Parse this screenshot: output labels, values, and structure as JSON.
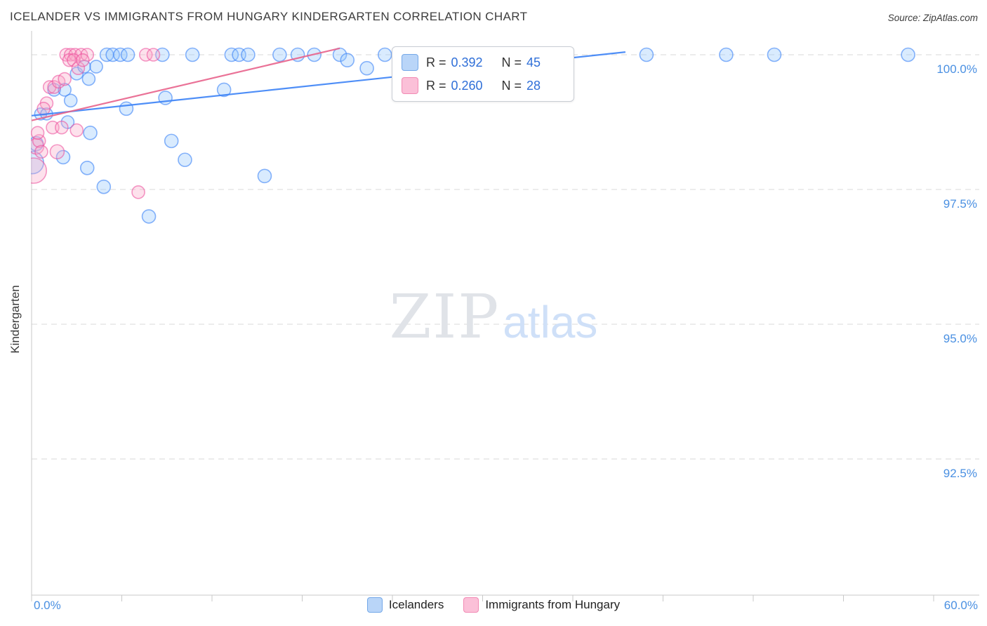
{
  "page": {
    "title": "ICELANDER VS IMMIGRANTS FROM HUNGARY KINDERGARTEN CORRELATION CHART",
    "source": "Source: ZipAtlas.com",
    "watermark": {
      "part1": "ZIP",
      "part2": "atlas"
    }
  },
  "legend_box": {
    "rows": [
      {
        "series": "Icelanders",
        "r_label": "R =",
        "r_value": "0.392",
        "n_label": "N =",
        "n_value": "45"
      },
      {
        "series": "Immigrants from Hungary",
        "r_label": "R =",
        "r_value": "0.260",
        "n_label": "N =",
        "n_value": "28"
      }
    ]
  },
  "bottom_legend": [
    {
      "label": "Icelanders"
    },
    {
      "label": "Immigrants from Hungary"
    }
  ],
  "chart_data": {
    "type": "scatter",
    "title": "ICELANDER VS IMMIGRANTS FROM HUNGARY KINDERGARTEN CORRELATION CHART",
    "xlabel": "",
    "ylabel": "Kindergarten",
    "xlim": [
      0,
      60
    ],
    "ylim": [
      89.9,
      100.4
    ],
    "grid": "dashed-horizontal",
    "legend_position": "top-center and bottom-center",
    "x_tick_labels": {
      "min": "0.0%",
      "max": "60.0%"
    },
    "y_ticks": [
      {
        "value": 100.0,
        "label": "100.0%"
      },
      {
        "value": 97.5,
        "label": "97.5%"
      },
      {
        "value": 95.0,
        "label": "95.0%"
      },
      {
        "value": 92.5,
        "label": "92.5%"
      }
    ],
    "axis_label_color": "#4a90e2",
    "series": [
      {
        "name": "Icelanders",
        "dataname": "icelanders",
        "R": 0.392,
        "N": 45,
        "fill": "#93c5fd",
        "fill_opacity": 0.35,
        "stroke": "#3b82f6",
        "stroke_opacity": 0.6,
        "points": [
          [
            5.0,
            100,
            9.5
          ],
          [
            5.4,
            100,
            9.5
          ],
          [
            5.9,
            100,
            9.5
          ],
          [
            6.4,
            100,
            9.5
          ],
          [
            8.7,
            100,
            9.5
          ],
          [
            10.7,
            100,
            9.5
          ],
          [
            13.3,
            100,
            9.5
          ],
          [
            13.8,
            100,
            9.5
          ],
          [
            14.4,
            100,
            9.5
          ],
          [
            16.5,
            100,
            9.5
          ],
          [
            17.7,
            100,
            9.5
          ],
          [
            18.8,
            100,
            9.5
          ],
          [
            20.5,
            100,
            9.5
          ],
          [
            23.5,
            100,
            9.5
          ],
          [
            27.2,
            100,
            9.5
          ],
          [
            32.0,
            100,
            9.5
          ],
          [
            40.9,
            100,
            9.5
          ],
          [
            46.2,
            100,
            9.5
          ],
          [
            49.4,
            100,
            9.5
          ],
          [
            58.3,
            100,
            9.5
          ],
          [
            0.05,
            98.0,
            16
          ],
          [
            0.3,
            98.35,
            10
          ],
          [
            0.6,
            98.9,
            8.5
          ],
          [
            1.0,
            98.9,
            8.5
          ],
          [
            1.5,
            99.35,
            9
          ],
          [
            2.2,
            99.35,
            9
          ],
          [
            2.6,
            99.15,
            9
          ],
          [
            3.0,
            99.65,
            9
          ],
          [
            3.5,
            99.78,
            9
          ],
          [
            3.8,
            99.55,
            9
          ],
          [
            4.3,
            99.78,
            9
          ],
          [
            2.1,
            98.1,
            9.5
          ],
          [
            2.4,
            98.75,
            9
          ],
          [
            3.9,
            98.55,
            9.5
          ],
          [
            3.7,
            97.9,
            9.5
          ],
          [
            4.8,
            97.55,
            9.5
          ],
          [
            7.8,
            97.0,
            9.5
          ],
          [
            6.3,
            99.0,
            9.5
          ],
          [
            8.9,
            99.2,
            9.5
          ],
          [
            9.3,
            98.4,
            9.5
          ],
          [
            10.2,
            98.05,
            9.5
          ],
          [
            12.8,
            99.35,
            9.5
          ],
          [
            15.5,
            97.75,
            9.5
          ],
          [
            21.0,
            99.9,
            9.5
          ],
          [
            22.3,
            99.75,
            9.5
          ]
        ],
        "trend": {
          "x1": 0,
          "y1": 98.87,
          "x2": 39.5,
          "y2": 100.05,
          "color": "#3b82f6"
        }
      },
      {
        "name": "Immigrants from Hungary",
        "dataname": "hungary",
        "R": 0.26,
        "N": 28,
        "fill": "#f9a8c9",
        "fill_opacity": 0.35,
        "stroke": "#ec4899",
        "stroke_opacity": 0.55,
        "points": [
          [
            2.3,
            100,
            9
          ],
          [
            2.6,
            100,
            9
          ],
          [
            2.9,
            100,
            9
          ],
          [
            3.3,
            100,
            9
          ],
          [
            3.7,
            100,
            9
          ],
          [
            7.6,
            100,
            9
          ],
          [
            8.1,
            100,
            9
          ],
          [
            31.0,
            100,
            9
          ],
          [
            0.15,
            97.85,
            18
          ],
          [
            0.3,
            98.3,
            11
          ],
          [
            0.5,
            98.4,
            9
          ],
          [
            0.65,
            98.2,
            9
          ],
          [
            0.4,
            98.55,
            9
          ],
          [
            1.2,
            99.4,
            9
          ],
          [
            1.5,
            99.4,
            9
          ],
          [
            1.8,
            99.5,
            9
          ],
          [
            1.0,
            99.1,
            9
          ],
          [
            1.4,
            98.65,
            9
          ],
          [
            2.0,
            98.65,
            9
          ],
          [
            0.8,
            99.0,
            9
          ],
          [
            2.5,
            99.9,
            9
          ],
          [
            2.8,
            99.9,
            9
          ],
          [
            3.1,
            99.75,
            9
          ],
          [
            2.2,
            99.55,
            9
          ],
          [
            3.0,
            98.6,
            9
          ],
          [
            1.7,
            98.2,
            10
          ],
          [
            7.1,
            97.45,
            9
          ],
          [
            3.4,
            99.9,
            9
          ]
        ],
        "trend": {
          "x1": 0,
          "y1": 98.78,
          "x2": 20.5,
          "y2": 100.12,
          "color": "#e8638c"
        }
      }
    ]
  }
}
